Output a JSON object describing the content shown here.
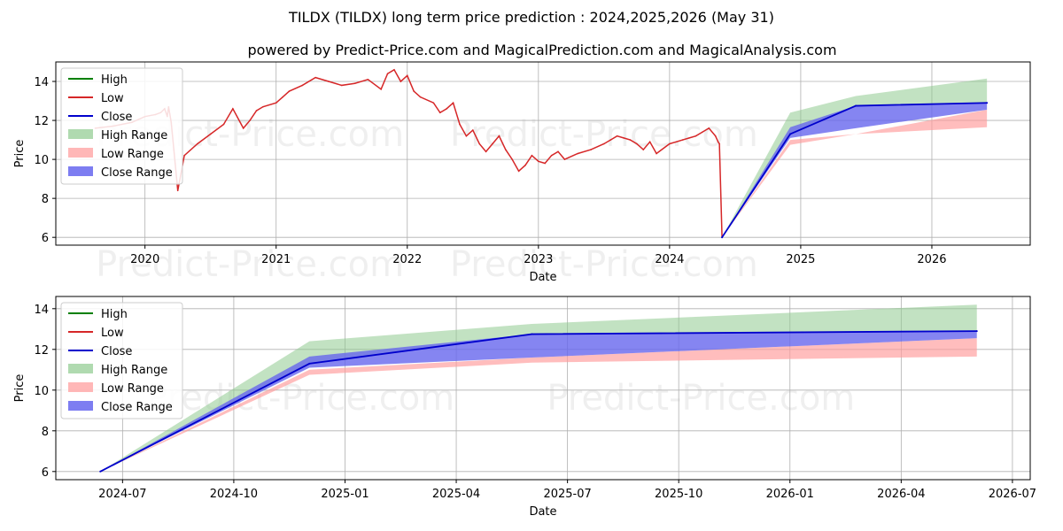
{
  "title_line1": "TILDX (TILDX) long term price prediction : 2024,2025,2026 (May 31)",
  "title_line2": "powered by Predict-Price.com and MagicalPrediction.com and MagicalAnalysis.com",
  "watermark": "Predict-Price.com",
  "colors": {
    "high": "#008000",
    "low": "#d62728",
    "close": "#0000cc",
    "high_range": "#8fca8f",
    "low_range": "#ff9999",
    "close_range": "#6666ee"
  },
  "legend": [
    "High",
    "Low",
    "Close",
    "High Range",
    "Low Range",
    "Close Range"
  ],
  "chart_data": [
    {
      "type": "line",
      "xlabel": "Date",
      "ylabel": "Price",
      "xlim": [
        2019.32,
        2026.75
      ],
      "ylim": [
        5.6,
        15.0
      ],
      "xticks": [
        2020,
        2021,
        2022,
        2023,
        2024,
        2025,
        2026
      ],
      "xtick_labels": [
        "2020",
        "2021",
        "2022",
        "2023",
        "2024",
        "2025",
        "2026"
      ],
      "yticks": [
        6,
        8,
        10,
        12,
        14
      ],
      "ytick_labels": [
        "6",
        "8",
        "10",
        "12",
        "14"
      ],
      "history_low": {
        "x": [
          2019.62,
          2019.75,
          2019.9,
          2020.0,
          2020.08,
          2020.12,
          2020.15,
          2020.17,
          2020.18,
          2020.2,
          2020.22,
          2020.25,
          2020.3,
          2020.4,
          2020.5,
          2020.6,
          2020.67,
          2020.75,
          2020.8,
          2020.85,
          2020.9,
          2021.0,
          2021.05,
          2021.1,
          2021.2,
          2021.3,
          2021.4,
          2021.5,
          2021.6,
          2021.7,
          2021.8,
          2021.85,
          2021.9,
          2021.95,
          2022.0,
          2022.05,
          2022.1,
          2022.2,
          2022.25,
          2022.3,
          2022.35,
          2022.4,
          2022.45,
          2022.5,
          2022.55,
          2022.6,
          2022.65,
          2022.7,
          2022.75,
          2022.8,
          2022.85,
          2022.9,
          2022.95,
          2023.0,
          2023.05,
          2023.1,
          2023.15,
          2023.2,
          2023.3,
          2023.4,
          2023.5,
          2023.55,
          2023.6,
          2023.65,
          2023.7,
          2023.75,
          2023.8,
          2023.85,
          2023.9,
          2024.0,
          2024.1,
          2024.15,
          2024.2,
          2024.25,
          2024.3,
          2024.35,
          2024.37,
          2024.38,
          2024.4
        ],
        "y": [
          11.6,
          11.7,
          11.9,
          12.2,
          12.3,
          12.4,
          12.6,
          12.2,
          12.7,
          11.9,
          10.5,
          8.4,
          10.2,
          10.8,
          11.3,
          11.8,
          12.6,
          11.6,
          12.0,
          12.5,
          12.7,
          12.9,
          13.2,
          13.5,
          13.8,
          14.2,
          14.0,
          13.8,
          13.9,
          14.1,
          13.6,
          14.4,
          14.6,
          14.0,
          14.3,
          13.5,
          13.2,
          12.9,
          12.4,
          12.6,
          12.9,
          11.8,
          11.2,
          11.5,
          10.8,
          10.4,
          10.8,
          11.2,
          10.5,
          10.0,
          9.4,
          9.7,
          10.2,
          9.9,
          9.8,
          10.2,
          10.4,
          10.0,
          10.3,
          10.5,
          10.8,
          11.0,
          11.2,
          11.1,
          11.0,
          10.8,
          10.5,
          10.9,
          10.3,
          10.8,
          11.0,
          11.1,
          11.2,
          11.4,
          11.6,
          11.2,
          10.9,
          10.8,
          6.0
        ]
      },
      "forecast": {
        "x": [
          2024.4,
          2024.92,
          2025.42,
          2026.42
        ],
        "high": [
          6.0,
          12.4,
          13.25,
          14.15
        ],
        "low_range_top": [
          6.0,
          11.0,
          11.3,
          12.55
        ],
        "low_range_bottom": [
          6.0,
          10.75,
          11.3,
          11.65
        ],
        "close": [
          6.0,
          11.3,
          12.75,
          12.9
        ],
        "close_range_top": [
          6.0,
          11.65,
          12.75,
          12.9
        ],
        "close_range_bottom": [
          6.0,
          11.1,
          11.6,
          12.55
        ]
      }
    },
    {
      "type": "line",
      "xlabel": "Date",
      "ylabel": "Price",
      "xlim": [
        2024.35,
        2026.54
      ],
      "ylim": [
        5.6,
        14.6
      ],
      "xticks": [
        2024.5,
        2024.75,
        2025.0,
        2025.25,
        2025.5,
        2025.75,
        2026.0,
        2026.25,
        2026.5
      ],
      "xtick_labels": [
        "2024-07",
        "2024-10",
        "2025-01",
        "2025-04",
        "2025-07",
        "2025-10",
        "2026-01",
        "2026-04",
        "2026-07"
      ],
      "yticks": [
        6,
        8,
        10,
        12,
        14
      ],
      "ytick_labels": [
        "6",
        "8",
        "10",
        "12",
        "14"
      ],
      "forecast": {
        "x": [
          2024.45,
          2024.92,
          2025.42,
          2026.42
        ],
        "high": [
          6.0,
          12.4,
          13.25,
          14.2
        ],
        "low_range_top": [
          6.0,
          11.0,
          11.6,
          12.55
        ],
        "low_range_bottom": [
          6.0,
          10.75,
          11.35,
          11.65
        ],
        "close": [
          6.0,
          11.3,
          12.75,
          12.9
        ],
        "close_range_top": [
          6.0,
          11.65,
          12.75,
          12.9
        ],
        "close_range_bottom": [
          6.0,
          11.1,
          11.6,
          12.55
        ]
      }
    }
  ]
}
